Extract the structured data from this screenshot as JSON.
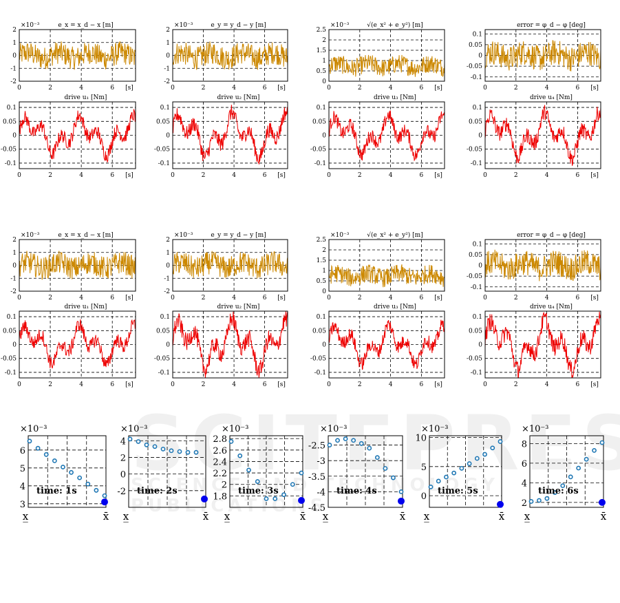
{
  "colors": {
    "error": "#cc8800",
    "drive": "#ee0000",
    "marker": "#1f77b4",
    "marker_big": "#0000ee",
    "grid": "#000000"
  },
  "watermark": {
    "big": "SCITEPRESS",
    "small": "SCIENCE AND TECHNOLOGY PUBLICATIONS"
  },
  "chart_data": [
    {
      "id": "g1-ex",
      "type": "line",
      "title": "e_x = x_d − x [m]",
      "exponent": "×10⁻³",
      "xlim": [
        0,
        7.5
      ],
      "ylim": [
        -2,
        2
      ],
      "yticks": [
        "-2",
        "-1",
        "0",
        "1",
        "2"
      ],
      "xticks": [
        "0",
        "2",
        "4",
        "6",
        "[s]"
      ],
      "series": [
        {
          "kind": "noise",
          "center": 0,
          "amp": 0.9
        }
      ]
    },
    {
      "id": "g1-ey",
      "type": "line",
      "title": "e_y = y_d − y [m]",
      "exponent": "×10⁻³",
      "xlim": [
        0,
        7.5
      ],
      "ylim": [
        -2,
        2
      ],
      "yticks": [
        "-2",
        "-1",
        "0",
        "1",
        "2"
      ],
      "xticks": [
        "0",
        "2",
        "4",
        "6",
        "[s]"
      ],
      "series": [
        {
          "kind": "noise",
          "center": 0,
          "amp": 0.9
        }
      ]
    },
    {
      "id": "g1-eabs",
      "type": "line",
      "title": "√(e_x² + e_y²) [m]",
      "exponent": "×10⁻³",
      "xlim": [
        0,
        7.5
      ],
      "ylim": [
        0,
        2.5
      ],
      "yticks": [
        "0",
        "0.5",
        "1",
        "1.5",
        "2",
        "2.5"
      ],
      "xticks": [
        "0",
        "2",
        "4",
        "6",
        "[s]"
      ],
      "series": [
        {
          "kind": "noise",
          "center": 0.75,
          "amp": 0.45
        }
      ]
    },
    {
      "id": "g1-ephi",
      "type": "line",
      "title": "error = φ_d − φ [deg]",
      "exponent": "",
      "xlim": [
        0,
        7.5
      ],
      "ylim": [
        -0.12,
        0.12
      ],
      "yticks": [
        "-0.1",
        "-0.05",
        "0",
        "0.05",
        "0.1"
      ],
      "xticks": [
        "0",
        "2",
        "4",
        "6",
        "[s]"
      ],
      "series": [
        {
          "kind": "noise",
          "center": 0,
          "amp": 0.06
        }
      ]
    },
    {
      "id": "g1-u1",
      "type": "line",
      "title": "drive u₁ [Nm]",
      "exponent": "",
      "xlim": [
        0,
        7.5
      ],
      "ylim": [
        -0.12,
        0.12
      ],
      "yticks": [
        "-0.1",
        "-0.05",
        "0",
        "0.05",
        "0.1"
      ],
      "xticks": [
        "0",
        "2",
        "4",
        "6",
        "[s]"
      ],
      "series": [
        {
          "kind": "drive",
          "amp": 0.07
        }
      ]
    },
    {
      "id": "g1-u2",
      "type": "line",
      "title": "drive u₂ [Nm]",
      "exponent": "",
      "xlim": [
        0,
        7.5
      ],
      "ylim": [
        -0.12,
        0.12
      ],
      "yticks": [
        "-0.1",
        "-0.05",
        "0",
        "0.05",
        "0.1"
      ],
      "xticks": [
        "0",
        "2",
        "4",
        "6",
        "[s]"
      ],
      "series": [
        {
          "kind": "drive",
          "amp": 0.08
        }
      ]
    },
    {
      "id": "g1-u3",
      "type": "line",
      "title": "drive u₃ [Nm]",
      "exponent": "",
      "xlim": [
        0,
        7.5
      ],
      "ylim": [
        -0.12,
        0.12
      ],
      "yticks": [
        "-0.1",
        "-0.05",
        "0",
        "0.05",
        "0.1"
      ],
      "xticks": [
        "0",
        "2",
        "4",
        "6",
        "[s]"
      ],
      "series": [
        {
          "kind": "drive",
          "amp": 0.07
        }
      ]
    },
    {
      "id": "g1-u4",
      "type": "line",
      "title": "drive u₄ [Nm]",
      "exponent": "",
      "xlim": [
        0,
        7.5
      ],
      "ylim": [
        -0.12,
        0.12
      ],
      "yticks": [
        "-0.1",
        "-0.05",
        "0",
        "0.05",
        "0.1"
      ],
      "xticks": [
        "0",
        "2",
        "4",
        "6",
        "[s]"
      ],
      "series": [
        {
          "kind": "drive",
          "amp": 0.08
        }
      ]
    },
    {
      "id": "g2-ex",
      "type": "line",
      "title": "e_x = x_d − x [m]",
      "exponent": "×10⁻³",
      "xlim": [
        0,
        7.5
      ],
      "ylim": [
        -2,
        2
      ],
      "yticks": [
        "-2",
        "-1",
        "0",
        "1",
        "2"
      ],
      "xticks": [
        "0",
        "2",
        "4",
        "6",
        "[s]"
      ],
      "series": [
        {
          "kind": "noise",
          "center": 0,
          "amp": 0.9
        }
      ]
    },
    {
      "id": "g2-ey",
      "type": "line",
      "title": "e_y = y_d − y [m]",
      "exponent": "×10⁻³",
      "xlim": [
        0,
        7.5
      ],
      "ylim": [
        -2,
        2
      ],
      "yticks": [
        "-2",
        "-1",
        "0",
        "1",
        "2"
      ],
      "xticks": [
        "0",
        "2",
        "4",
        "6",
        "[s]"
      ],
      "series": [
        {
          "kind": "noise",
          "center": 0,
          "amp": 0.9
        }
      ]
    },
    {
      "id": "g2-eabs",
      "type": "line",
      "title": "√(e_x² + e_y²) [m]",
      "exponent": "×10⁻³",
      "xlim": [
        0,
        7.5
      ],
      "ylim": [
        0,
        2.5
      ],
      "yticks": [
        "0",
        "0.5",
        "1",
        "1.5",
        "2",
        "2.5"
      ],
      "xticks": [
        "0",
        "2",
        "4",
        "6",
        "[s]"
      ],
      "series": [
        {
          "kind": "noise",
          "center": 0.75,
          "amp": 0.45
        }
      ]
    },
    {
      "id": "g2-ephi",
      "type": "line",
      "title": "error = φ_d − φ [deg]",
      "exponent": "",
      "xlim": [
        0,
        7.5
      ],
      "ylim": [
        -0.12,
        0.12
      ],
      "yticks": [
        "-0.1",
        "-0.05",
        "0",
        "0.05",
        "0.1"
      ],
      "xticks": [
        "0",
        "2",
        "4",
        "6",
        "[s]"
      ],
      "series": [
        {
          "kind": "noise",
          "center": 0,
          "amp": 0.06
        }
      ]
    },
    {
      "id": "g2-u1",
      "type": "line",
      "title": "drive u₁ [Nm]",
      "exponent": "",
      "xlim": [
        0,
        7.5
      ],
      "ylim": [
        -0.12,
        0.12
      ],
      "yticks": [
        "-0.1",
        "-0.05",
        "0",
        "0.05",
        "0.1"
      ],
      "xticks": [
        "0",
        "2",
        "4",
        "6",
        "[s]"
      ],
      "series": [
        {
          "kind": "drive",
          "amp": 0.07
        }
      ]
    },
    {
      "id": "g2-u2",
      "type": "line",
      "title": "drive u₂ [Nm]",
      "exponent": "",
      "xlim": [
        0,
        7.5
      ],
      "ylim": [
        -0.12,
        0.12
      ],
      "yticks": [
        "-0.1",
        "-0.05",
        "0",
        "0.05",
        "0.1"
      ],
      "xticks": [
        "0",
        "2",
        "4",
        "6",
        "[s]"
      ],
      "series": [
        {
          "kind": "drive",
          "amp": 0.09
        }
      ]
    },
    {
      "id": "g2-u3",
      "type": "line",
      "title": "drive u₃ [Nm]",
      "exponent": "",
      "xlim": [
        0,
        7.5
      ],
      "ylim": [
        -0.12,
        0.12
      ],
      "yticks": [
        "-0.1",
        "-0.05",
        "0",
        "0.05",
        "0.1"
      ],
      "xticks": [
        "0",
        "2",
        "4",
        "6",
        "[s]"
      ],
      "series": [
        {
          "kind": "drive",
          "amp": 0.07
        }
      ]
    },
    {
      "id": "g2-u4",
      "type": "line",
      "title": "drive u₄ [Nm]",
      "exponent": "",
      "xlim": [
        0,
        7.5
      ],
      "ylim": [
        -0.12,
        0.12
      ],
      "yticks": [
        "-0.1",
        "-0.05",
        "0",
        "0.05",
        "0.1"
      ],
      "xticks": [
        "0",
        "2",
        "4",
        "6",
        "[s]"
      ],
      "series": [
        {
          "kind": "drive",
          "amp": 0.09
        }
      ]
    },
    {
      "id": "s1",
      "type": "scatter",
      "label": "time: 1s",
      "exponent": "×10⁻³",
      "ylim": [
        2.8,
        6.8
      ],
      "yticks": [
        "3",
        "4",
        "5",
        "6"
      ],
      "xlabel_left": "x̲",
      "xlabel_right": "x̄",
      "values": [
        6.5,
        6.1,
        5.75,
        5.4,
        5.05,
        4.75,
        4.45,
        4.1,
        3.75,
        3.45
      ],
      "final": 3.1
    },
    {
      "id": "s2",
      "type": "scatter",
      "label": "time: 2s",
      "exponent": "×10⁻³",
      "ylim": [
        -4,
        4.6
      ],
      "yticks": [
        "-2",
        "0",
        "2",
        "4"
      ],
      "xlabel_left": "x̲",
      "xlabel_right": "x̄",
      "values": [
        4.2,
        3.9,
        3.5,
        3.3,
        3.0,
        2.8,
        2.7,
        2.6,
        2.6,
        -3.0
      ],
      "final": -3.0
    },
    {
      "id": "s3",
      "type": "scatter",
      "label": "time: 3s",
      "exponent": "×10⁻³",
      "ylim": [
        1.6,
        2.85
      ],
      "yticks": [
        "1.8",
        "2",
        "2.2",
        "2.4",
        "2.6",
        "2.8"
      ],
      "xlabel_left": "x̲",
      "xlabel_right": "x̄",
      "values": [
        2.75,
        2.5,
        2.25,
        2.05,
        1.75,
        1.75,
        1.82,
        2.0,
        2.2
      ],
      "final": 1.72
    },
    {
      "id": "s4",
      "type": "scatter",
      "label": "time: 4s",
      "exponent": "×10⁻³",
      "ylim": [
        -4.5,
        -2.2
      ],
      "yticks": [
        "-4.5",
        "-4",
        "-3.5",
        "-3",
        "-2.5"
      ],
      "xlabel_left": "x̲",
      "xlabel_right": "x̄",
      "values": [
        -2.5,
        -2.35,
        -2.3,
        -2.35,
        -2.45,
        -2.6,
        -2.9,
        -3.25,
        -3.55,
        -4.0
      ],
      "final": -4.3
    },
    {
      "id": "s5",
      "type": "scatter",
      "label": "time: 5s",
      "exponent": "×10⁻³",
      "ylim": [
        -2,
        10.3
      ],
      "yticks": [
        "0",
        "5",
        "10"
      ],
      "xlabel_left": "x̲",
      "xlabel_right": "x̄",
      "values": [
        1.5,
        2.5,
        3.2,
        3.9,
        4.7,
        5.5,
        6.4,
        7.1,
        8.2,
        9.3
      ],
      "final": -1.5
    },
    {
      "id": "s6",
      "type": "scatter",
      "label": "time: 6s",
      "exponent": "×10⁻³",
      "ylim": [
        1.5,
        8.8
      ],
      "yticks": [
        "2",
        "4",
        "6",
        "8"
      ],
      "xlabel_left": "x̲",
      "xlabel_right": "x̄",
      "values": [
        2.1,
        2.2,
        2.4,
        3.0,
        3.7,
        4.6,
        5.5,
        6.4,
        7.3,
        8.1
      ],
      "final": 2.0
    }
  ]
}
